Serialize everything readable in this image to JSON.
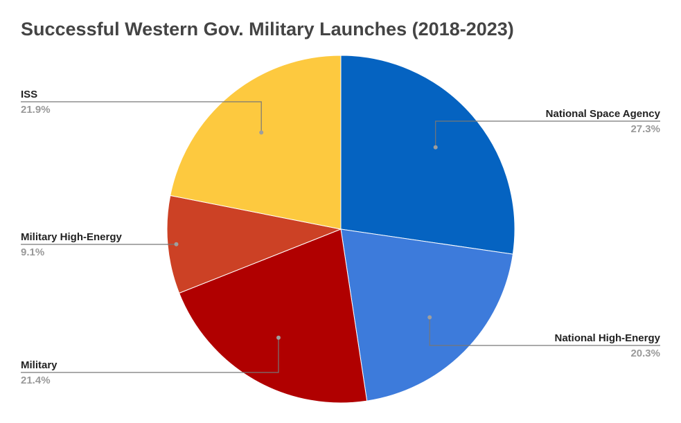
{
  "chart_data": {
    "type": "pie",
    "title": "Successful Western Gov. Military Launches (2018-2023)",
    "slices": [
      {
        "label": "National Space Agency",
        "value": 27.3,
        "pct_text": "27.3%",
        "color": "#0563C1"
      },
      {
        "label": "National High-Energy",
        "value": 20.3,
        "pct_text": "20.3%",
        "color": "#3D7BDB"
      },
      {
        "label": "Military",
        "value": 21.4,
        "pct_text": "21.4%",
        "color": "#B00000"
      },
      {
        "label": "Military High-Energy",
        "value": 9.1,
        "pct_text": "9.1%",
        "color": "#CC4125"
      },
      {
        "label": "ISS",
        "value": 21.9,
        "pct_text": "21.9%",
        "color": "#FDC93F"
      }
    ],
    "start_angle": "12 o'clock",
    "direction": "clockwise",
    "legend": "none (labels beside slices)"
  }
}
